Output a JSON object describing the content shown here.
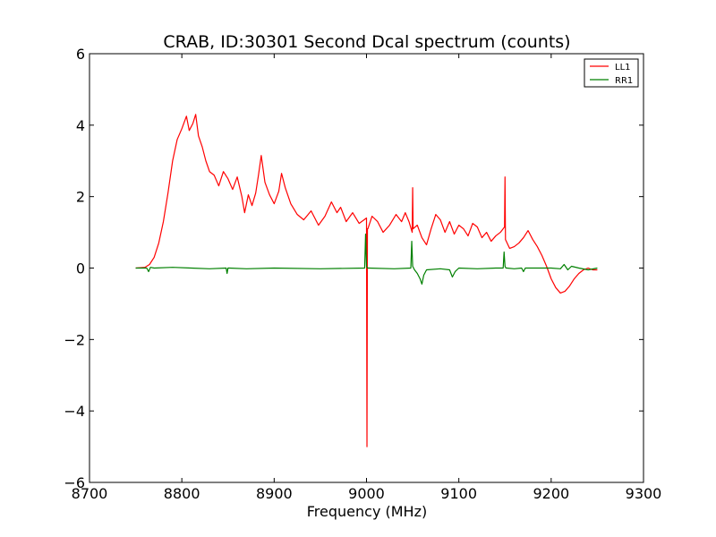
{
  "chart_data": {
    "type": "line",
    "title": "CRAB, ID:30301 Second Dcal spectrum (counts)",
    "xlabel": "Frequency (MHz)",
    "ylabel": "",
    "xlim": [
      8700,
      9300
    ],
    "ylim": [
      -6,
      6
    ],
    "xticks": [
      8700,
      8800,
      8900,
      9000,
      9100,
      9200,
      9300
    ],
    "yticks": [
      -6,
      -4,
      -2,
      0,
      2,
      4,
      6
    ],
    "xtick_labels": [
      "8700",
      "8800",
      "8900",
      "9000",
      "9100",
      "9200",
      "9300"
    ],
    "ytick_labels": [
      "−6",
      "−4",
      "−2",
      "0",
      "2",
      "4",
      "6"
    ],
    "grid": false,
    "legend_position": "top-right",
    "series": [
      {
        "name": "LL1",
        "color": "#ff0000",
        "x": [
          8750,
          8760,
          8765,
          8770,
          8775,
          8780,
          8785,
          8790,
          8795,
          8800,
          8805,
          8808,
          8812,
          8815,
          8818,
          8822,
          8826,
          8830,
          8835,
          8840,
          8845,
          8850,
          8855,
          8860,
          8865,
          8868,
          8872,
          8876,
          8880,
          8883,
          8886,
          8890,
          8895,
          8900,
          8905,
          8908,
          8912,
          8918,
          8925,
          8932,
          8940,
          8948,
          8955,
          8962,
          8968,
          8972,
          8978,
          8985,
          8992,
          9000,
          9000.5,
          9001,
          9001.5,
          9006,
          9012,
          9018,
          9025,
          9032,
          9038,
          9042,
          9046,
          9049.5,
          9050,
          9050.5,
          9055,
          9060,
          9065,
          9070,
          9075,
          9080,
          9085,
          9090,
          9095,
          9100,
          9105,
          9110,
          9115,
          9120,
          9125,
          9130,
          9135,
          9140,
          9145,
          9149.5,
          9150,
          9150.5,
          9155,
          9160,
          9165,
          9170,
          9175,
          9180,
          9185,
          9190,
          9195,
          9200,
          9205,
          9210,
          9215,
          9220,
          9225,
          9230,
          9235,
          9240,
          9245,
          9250
        ],
        "y": [
          0,
          0.02,
          0.1,
          0.3,
          0.7,
          1.3,
          2.1,
          3.0,
          3.6,
          3.9,
          4.25,
          3.85,
          4.05,
          4.3,
          3.7,
          3.4,
          3.0,
          2.7,
          2.6,
          2.3,
          2.7,
          2.5,
          2.2,
          2.55,
          2.0,
          1.55,
          2.05,
          1.75,
          2.1,
          2.6,
          3.15,
          2.4,
          2.05,
          1.8,
          2.15,
          2.65,
          2.25,
          1.8,
          1.5,
          1.35,
          1.6,
          1.2,
          1.45,
          1.85,
          1.55,
          1.7,
          1.3,
          1.55,
          1.25,
          1.4,
          -5.0,
          1.1,
          1.1,
          1.45,
          1.3,
          1.0,
          1.2,
          1.5,
          1.3,
          1.55,
          1.3,
          1.0,
          2.25,
          1.1,
          1.2,
          0.85,
          0.65,
          1.1,
          1.5,
          1.35,
          1.0,
          1.3,
          0.95,
          1.2,
          1.1,
          0.9,
          1.25,
          1.15,
          0.85,
          1.0,
          0.75,
          0.9,
          1.0,
          1.15,
          2.55,
          0.8,
          0.55,
          0.6,
          0.7,
          0.85,
          1.05,
          0.8,
          0.6,
          0.35,
          0.05,
          -0.3,
          -0.55,
          -0.7,
          -0.65,
          -0.5,
          -0.3,
          -0.15,
          -0.05,
          0.0,
          -0.05,
          -0.05
        ]
      },
      {
        "name": "RR1",
        "color": "#008000",
        "x": [
          8750,
          8762,
          8764,
          8766,
          8770,
          8790,
          8810,
          8830,
          8848,
          8849,
          8850,
          8851,
          8870,
          8900,
          8950,
          8998,
          8999,
          9000,
          9001,
          9002,
          9030,
          9048,
          9049,
          9050,
          9051,
          9052,
          9055,
          9058,
          9060,
          9062,
          9065,
          9080,
          9090,
          9093,
          9096,
          9100,
          9120,
          9140,
          9148,
          9149,
          9150,
          9151,
          9152,
          9160,
          9168,
          9170,
          9172,
          9200,
          9210,
          9214,
          9218,
          9222,
          9230,
          9240,
          9250
        ],
        "y": [
          0,
          0,
          -0.1,
          0.02,
          0,
          0.02,
          0,
          -0.02,
          0,
          -0.15,
          0,
          0,
          -0.02,
          0,
          -0.02,
          0,
          0.95,
          0.05,
          0,
          0,
          -0.02,
          0,
          0.75,
          0.05,
          0,
          -0.05,
          -0.15,
          -0.3,
          -0.45,
          -0.2,
          -0.05,
          -0.02,
          -0.05,
          -0.25,
          -0.1,
          0,
          -0.02,
          0,
          0,
          0.45,
          0.05,
          0,
          0,
          -0.02,
          0,
          -0.1,
          0,
          0,
          -0.02,
          0.1,
          -0.05,
          0.05,
          0,
          -0.05,
          0
        ]
      }
    ]
  }
}
